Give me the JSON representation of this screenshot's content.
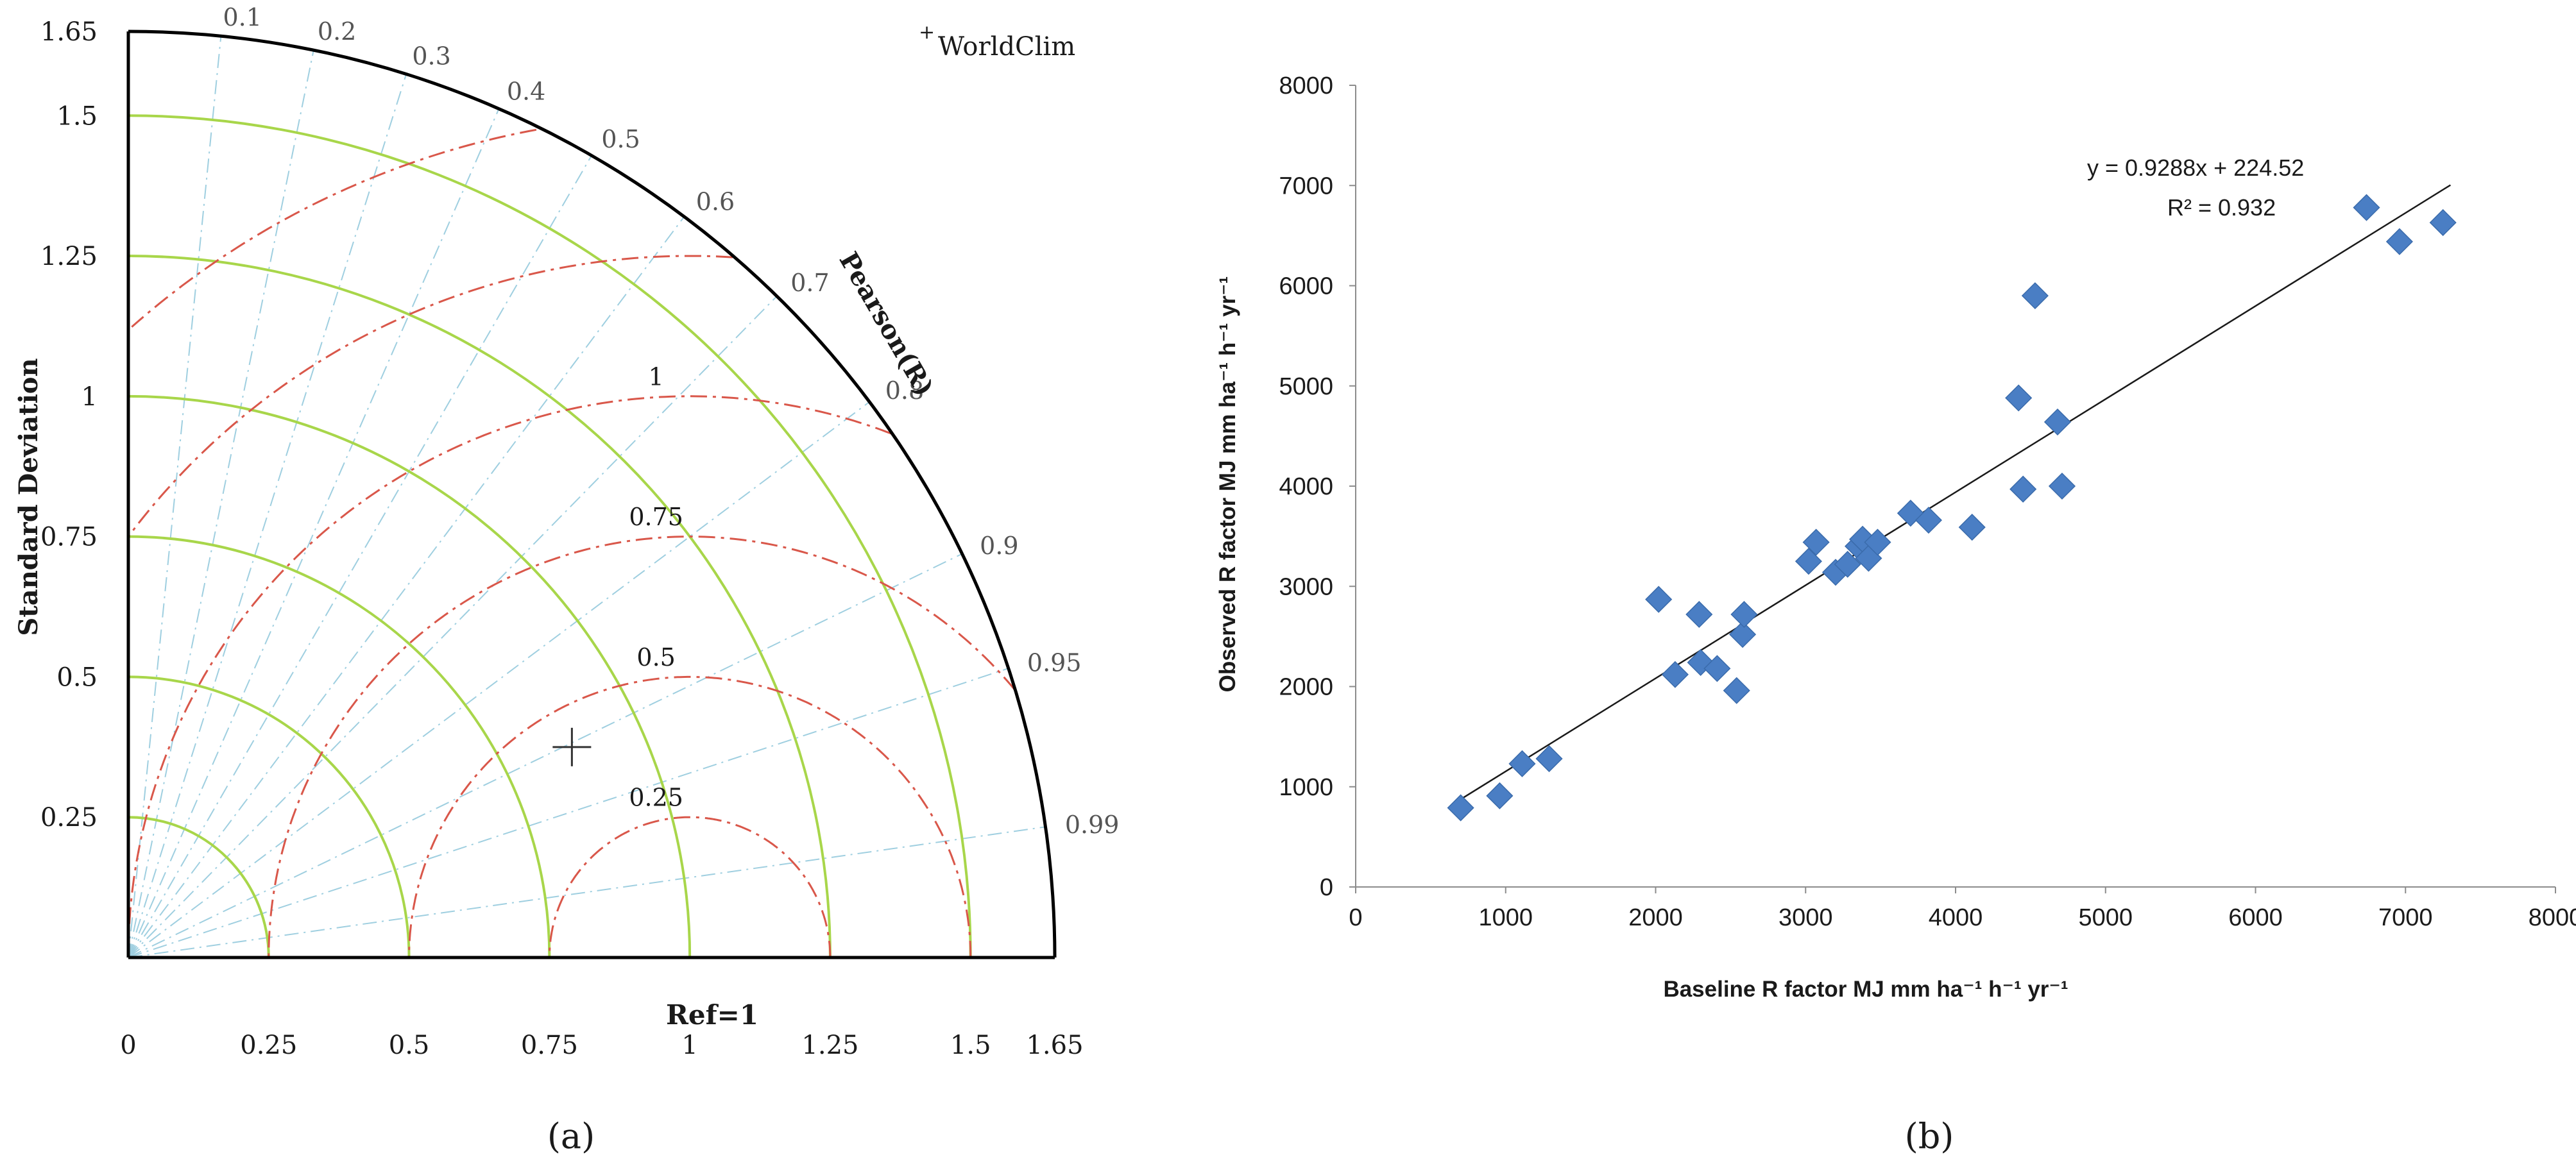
{
  "chart_data": [
    {
      "type": "taylor",
      "panel_label": "(a)",
      "ylabel": "Standard Deviation",
      "arc_label": "Pearson(R)",
      "ref_label": "Ref=1",
      "ref_std": 1,
      "max_std": 1.65,
      "x_ticks": [
        0,
        0.25,
        0.5,
        0.75,
        1,
        1.25,
        1.5,
        1.65
      ],
      "x_tick_labels": [
        "0",
        "0.25",
        "0.5",
        "0.75",
        "1",
        "1.25",
        "1.5",
        "1.65"
      ],
      "y_ticks": [
        0.25,
        0.5,
        0.75,
        1,
        1.25,
        1.5,
        1.65
      ],
      "y_tick_labels": [
        "0.25",
        "0.5",
        "0.75",
        "1",
        "1.25",
        "1.5",
        "1.65"
      ],
      "std_arcs": [
        0.25,
        0.5,
        0.75,
        1,
        1.25,
        1.5
      ],
      "correlations": [
        0.1,
        0.2,
        0.3,
        0.4,
        0.5,
        0.6,
        0.7,
        0.8,
        0.9,
        0.95,
        0.99
      ],
      "correlation_labels": [
        "0.1",
        "0.2",
        "0.3",
        "0.4",
        "0.5",
        "0.6",
        "0.7",
        "0.8",
        "0.9",
        "0.95",
        "0.99"
      ],
      "rms_arcs": [
        0.25,
        0.5,
        0.75,
        1,
        1.25,
        1.5
      ],
      "rms_labels": [
        {
          "value": 0.25,
          "text": "0.25"
        },
        {
          "value": 0.5,
          "text": "0.5"
        },
        {
          "value": 0.75,
          "text": "0.75"
        },
        {
          "value": 1,
          "text": "1"
        }
      ],
      "points": [
        {
          "name": "WorldClim",
          "x": 0.79,
          "y": 0.375,
          "marker": "+"
        }
      ],
      "legend_marker": "+",
      "legend_entries": [
        "WorldClim"
      ],
      "legend_position": "top-right"
    },
    {
      "type": "scatter",
      "panel_label": "(b)",
      "xlabel": "Baseline R factor MJ mm ha⁻¹ h⁻¹ yr⁻¹",
      "ylabel": "Observed R factor MJ mm ha⁻¹ h⁻¹ yr⁻¹",
      "xlim": [
        0,
        8000
      ],
      "ylim": [
        0,
        8000
      ],
      "x_ticks": [
        0,
        1000,
        2000,
        3000,
        4000,
        5000,
        6000,
        7000,
        8000
      ],
      "y_ticks": [
        0,
        1000,
        2000,
        3000,
        4000,
        5000,
        6000,
        7000,
        8000
      ],
      "grid": false,
      "trendline": {
        "slope": 0.9288,
        "intercept": 224.52,
        "x_range": [
          700,
          7300
        ]
      },
      "equation": "y = 0.9288x + 224.52",
      "r_squared": "R² = 0.932",
      "marker_color": "#4a7ec4",
      "points": [
        {
          "x": 700,
          "y": 790
        },
        {
          "x": 960,
          "y": 910
        },
        {
          "x": 1110,
          "y": 1230
        },
        {
          "x": 1290,
          "y": 1280
        },
        {
          "x": 2020,
          "y": 2870
        },
        {
          "x": 2130,
          "y": 2120
        },
        {
          "x": 2290,
          "y": 2720
        },
        {
          "x": 2300,
          "y": 2240
        },
        {
          "x": 2410,
          "y": 2180
        },
        {
          "x": 2540,
          "y": 1960
        },
        {
          "x": 2580,
          "y": 2520
        },
        {
          "x": 2590,
          "y": 2720
        },
        {
          "x": 3020,
          "y": 3250
        },
        {
          "x": 3070,
          "y": 3440
        },
        {
          "x": 3200,
          "y": 3140
        },
        {
          "x": 3280,
          "y": 3220
        },
        {
          "x": 3350,
          "y": 3400
        },
        {
          "x": 3380,
          "y": 3470
        },
        {
          "x": 3420,
          "y": 3280
        },
        {
          "x": 3480,
          "y": 3440
        },
        {
          "x": 3700,
          "y": 3730
        },
        {
          "x": 3820,
          "y": 3660
        },
        {
          "x": 4110,
          "y": 3590
        },
        {
          "x": 4420,
          "y": 4880
        },
        {
          "x": 4450,
          "y": 3970
        },
        {
          "x": 4530,
          "y": 5900
        },
        {
          "x": 4680,
          "y": 4640
        },
        {
          "x": 4710,
          "y": 4000
        },
        {
          "x": 6740,
          "y": 6780
        },
        {
          "x": 6960,
          "y": 6440
        },
        {
          "x": 7250,
          "y": 6630
        }
      ]
    }
  ]
}
